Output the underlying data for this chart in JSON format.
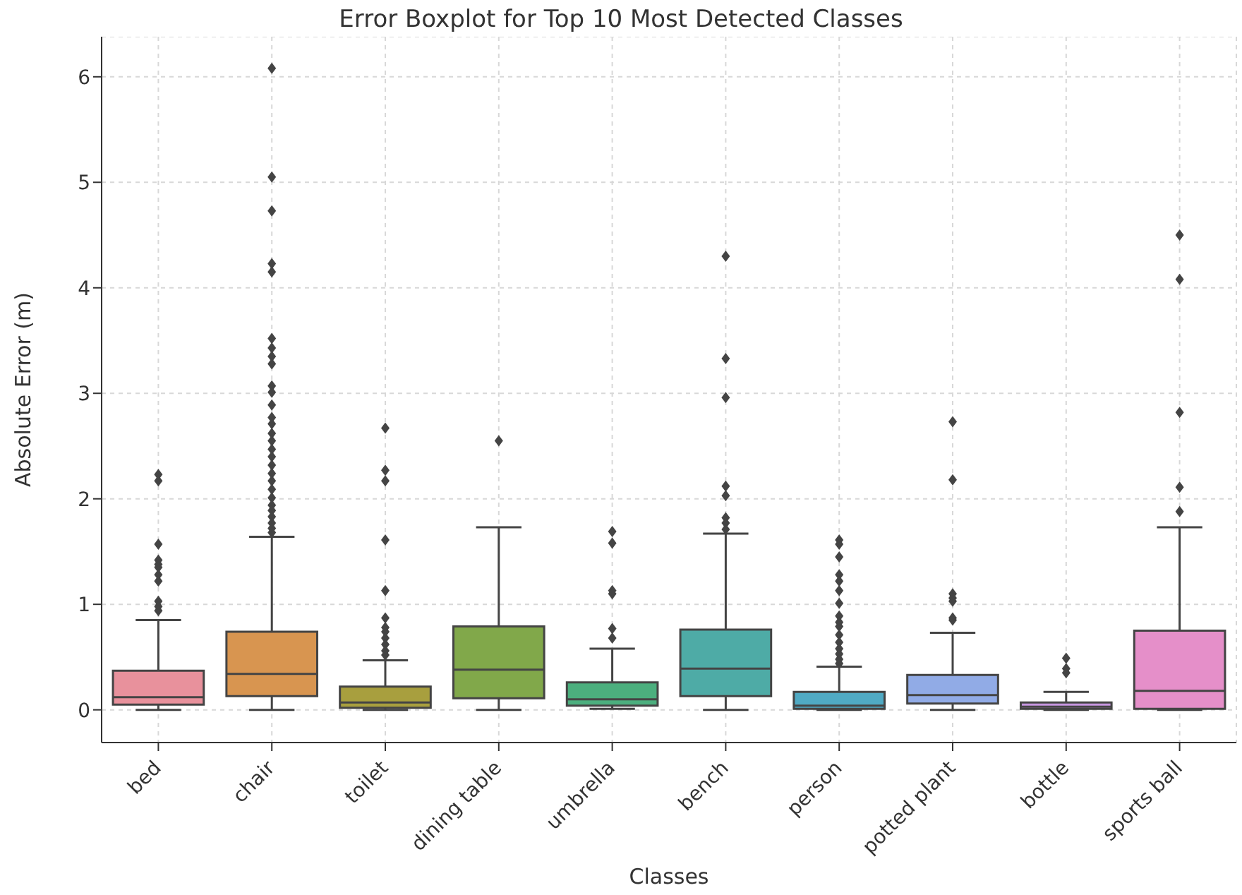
{
  "chart_data": {
    "type": "box",
    "title": "Error Boxplot for Top 10 Most Detected Classes",
    "xlabel": "Classes",
    "ylabel": "Absolute Error (m)",
    "categories": [
      "bed",
      "chair",
      "toilet",
      "dining table",
      "umbrella",
      "bench",
      "person",
      "potted plant",
      "bottle",
      "sports ball"
    ],
    "colors": [
      "#e8919c",
      "#d89550",
      "#a89f3e",
      "#81a84a",
      "#4caf7e",
      "#4eaba6",
      "#50aac4",
      "#91abe6",
      "#c796e0",
      "#e58fc9"
    ],
    "boxes": [
      {
        "low": 0,
        "q1": 0.05,
        "median": 0.12,
        "q3": 0.37,
        "high": 0.85,
        "outliers": [
          2.23,
          2.17,
          1.57,
          1.42,
          1.38,
          1.35,
          1.28,
          1.22,
          1.03,
          0.98,
          0.94
        ]
      },
      {
        "low": 0,
        "q1": 0.13,
        "median": 0.34,
        "q3": 0.74,
        "high": 1.64,
        "outliers": [
          6.08,
          5.05,
          4.73,
          4.23,
          4.15,
          3.52,
          3.43,
          3.35,
          3.28,
          3.07,
          3.01,
          2.89,
          2.77,
          2.71,
          2.62,
          2.55,
          2.47,
          2.4,
          2.32,
          2.24,
          2.17,
          2.09,
          2.01,
          1.94,
          1.89,
          1.83,
          1.77,
          1.72,
          1.68
        ]
      },
      {
        "low": 0,
        "q1": 0.02,
        "median": 0.07,
        "q3": 0.22,
        "high": 0.47,
        "outliers": [
          2.67,
          2.27,
          2.17,
          1.61,
          1.13,
          0.87,
          0.78,
          0.74,
          0.68,
          0.62,
          0.56,
          0.52
        ]
      },
      {
        "low": 0,
        "q1": 0.11,
        "median": 0.38,
        "q3": 0.79,
        "high": 1.73,
        "outliers": [
          2.55
        ]
      },
      {
        "low": 0.01,
        "q1": 0.04,
        "median": 0.1,
        "q3": 0.26,
        "high": 0.58,
        "outliers": [
          1.69,
          1.58,
          1.13,
          1.1,
          0.77,
          0.68
        ]
      },
      {
        "low": 0,
        "q1": 0.13,
        "median": 0.39,
        "q3": 0.76,
        "high": 1.67,
        "outliers": [
          4.3,
          3.33,
          2.96,
          2.12,
          2.03,
          1.82,
          1.77,
          1.71
        ]
      },
      {
        "low": 0,
        "q1": 0.01,
        "median": 0.04,
        "q3": 0.17,
        "high": 0.41,
        "outliers": [
          1.61,
          1.57,
          1.45,
          1.28,
          1.22,
          1.13,
          1.01,
          0.89,
          0.83,
          0.79,
          0.71,
          0.64,
          0.58,
          0.53,
          0.48,
          0.44
        ]
      },
      {
        "low": 0,
        "q1": 0.06,
        "median": 0.14,
        "q3": 0.33,
        "high": 0.73,
        "outliers": [
          2.73,
          2.18,
          1.1,
          1.06,
          1.03,
          0.87,
          0.85
        ]
      },
      {
        "low": 0,
        "q1": 0.01,
        "median": 0.03,
        "q3": 0.07,
        "high": 0.17,
        "outliers": [
          0.49,
          0.39,
          0.35
        ]
      },
      {
        "low": 0,
        "q1": 0.01,
        "median": 0.18,
        "q3": 0.75,
        "high": 1.73,
        "outliers": [
          4.5,
          4.08,
          2.82,
          2.11,
          1.88
        ]
      }
    ],
    "ylim": [
      -0.31,
      6.38
    ],
    "yticks": [
      0,
      1,
      2,
      3,
      4,
      5,
      6
    ],
    "grid": true
  }
}
